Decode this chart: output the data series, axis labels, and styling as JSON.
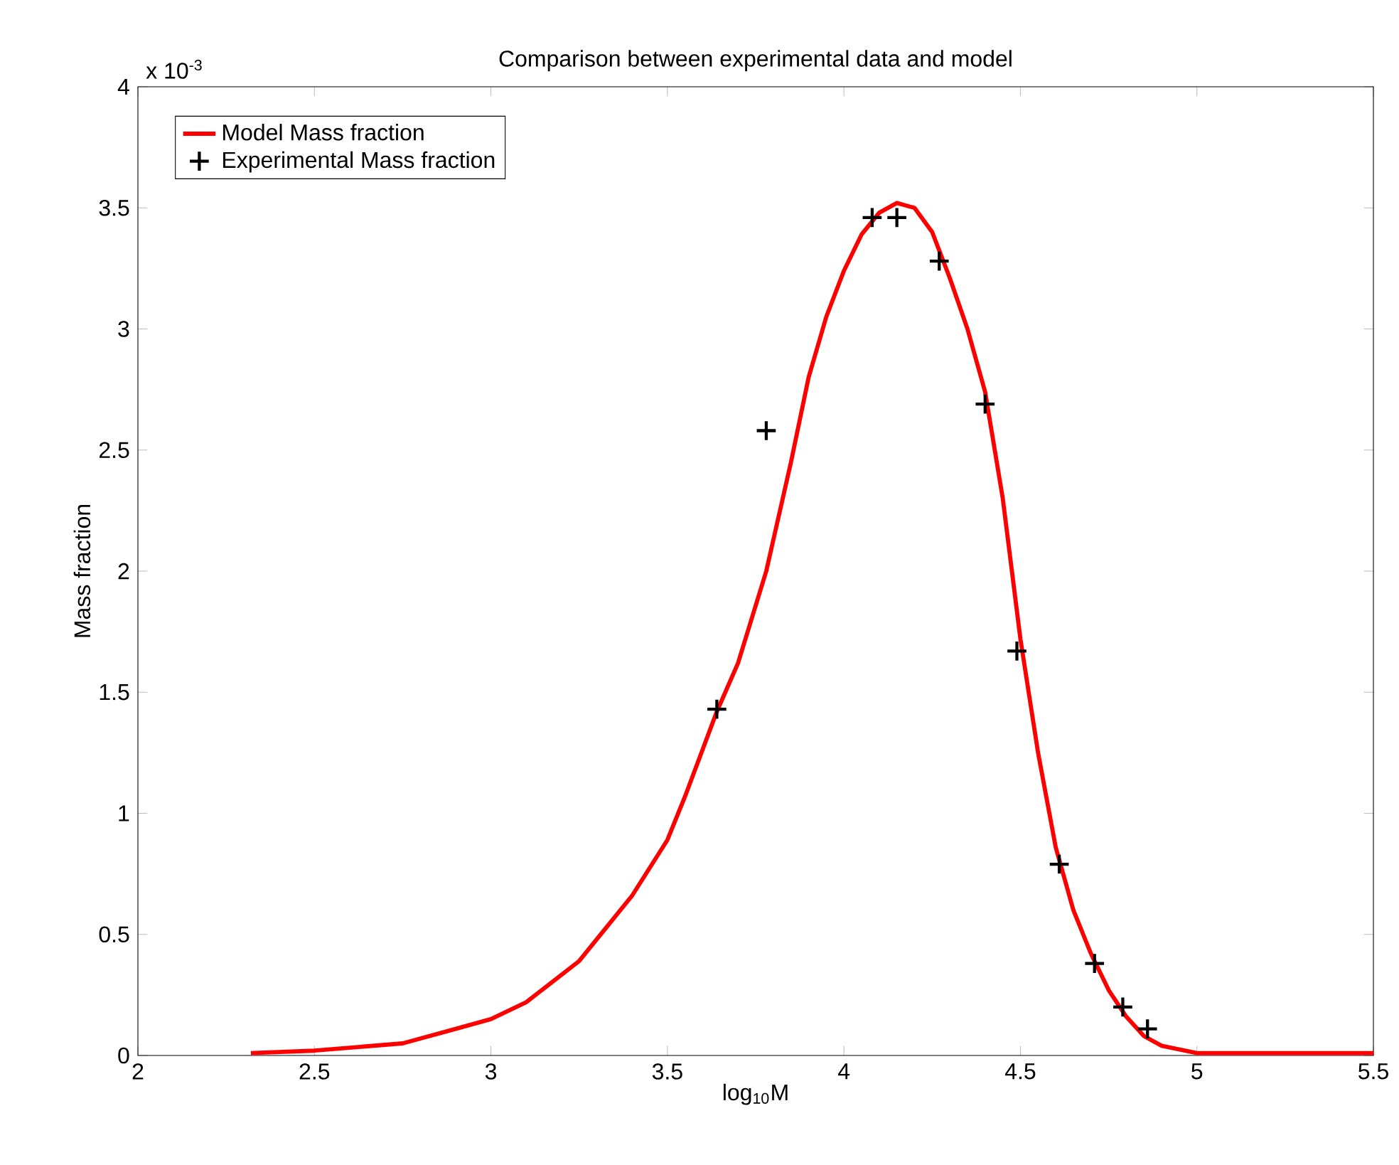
{
  "chart_data": {
    "type": "line",
    "title": "Comparison between experimental data and model",
    "xlabel": "log$_{10}$M",
    "ylabel": "Mass fraction",
    "annotations": [
      "x 10$^{-3}$"
    ],
    "xlim": [
      2,
      5.5
    ],
    "ylim": [
      0,
      4
    ],
    "xticks": [
      2,
      2.5,
      3,
      3.5,
      4,
      4.5,
      5,
      5.5
    ],
    "yticks": [
      0,
      0.5,
      1,
      1.5,
      2,
      2.5,
      3,
      3.5,
      4
    ],
    "grid": false,
    "legend": "top left",
    "series": [
      {
        "name": "Model Mass fraction",
        "color": "#ff0000",
        "marker": "none",
        "line_style": "solid",
        "x": [
          2.32,
          2.5,
          2.75,
          2.9,
          3.0,
          3.1,
          3.25,
          3.4,
          3.5,
          3.55,
          3.64,
          3.7,
          3.78,
          3.85,
          3.9,
          3.95,
          4.0,
          4.05,
          4.1,
          4.15,
          4.2,
          4.25,
          4.3,
          4.35,
          4.4,
          4.45,
          4.5,
          4.55,
          4.6,
          4.65,
          4.7,
          4.75,
          4.8,
          4.85,
          4.9,
          5.0,
          5.25,
          5.5
        ],
        "values": [
          0.01,
          0.02,
          0.05,
          0.11,
          0.15,
          0.22,
          0.39,
          0.66,
          0.89,
          1.07,
          1.42,
          1.62,
          2.0,
          2.45,
          2.8,
          3.05,
          3.24,
          3.39,
          3.48,
          3.52,
          3.5,
          3.4,
          3.21,
          3.0,
          2.74,
          2.3,
          1.72,
          1.25,
          0.86,
          0.6,
          0.42,
          0.27,
          0.16,
          0.08,
          0.04,
          0.01,
          0.01,
          0.01
        ]
      },
      {
        "name": "Experimental Mass fraction",
        "type": "scatter",
        "color": "#000000",
        "marker": "cross",
        "x": [
          3.64,
          3.78,
          4.08,
          4.15,
          4.27,
          4.4,
          4.49,
          4.61,
          4.71,
          4.79,
          4.86
        ],
        "values": [
          1.43,
          2.58,
          3.46,
          3.46,
          3.28,
          2.69,
          1.67,
          0.79,
          0.38,
          0.2,
          0.11
        ]
      }
    ]
  }
}
